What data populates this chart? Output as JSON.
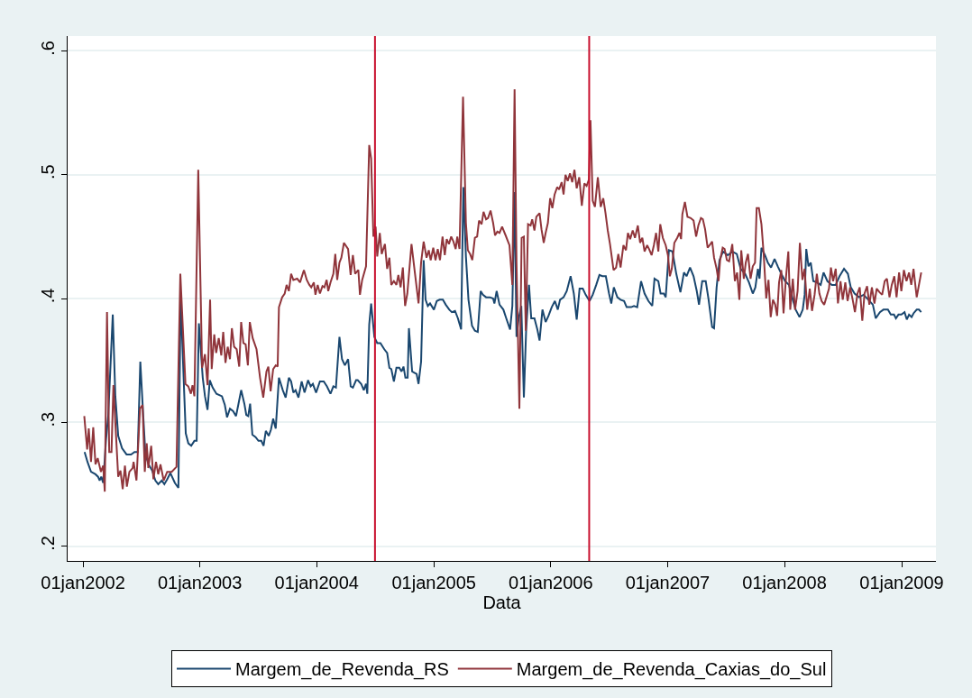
{
  "chart_data": {
    "type": "line",
    "xlabel": "Data",
    "xlim": [
      "2001-11-14",
      "2009-04-18"
    ],
    "xticks": [
      {
        "value": "2002-01-01",
        "label": "01jan2002"
      },
      {
        "value": "2003-01-01",
        "label": "01jan2003"
      },
      {
        "value": "2004-01-01",
        "label": "01jan2004"
      },
      {
        "value": "2005-01-01",
        "label": "01jan2005"
      },
      {
        "value": "2006-01-01",
        "label": "01jan2006"
      },
      {
        "value": "2007-01-01",
        "label": "01jan2007"
      },
      {
        "value": "2008-01-01",
        "label": "01jan2008"
      },
      {
        "value": "2009-01-01",
        "label": "01jan2009"
      }
    ],
    "ylim": [
      0.188,
      0.612
    ],
    "yticks": [
      {
        "value": 0.2,
        "label": ".2"
      },
      {
        "value": 0.3,
        "label": ".3"
      },
      {
        "value": 0.4,
        "label": ".4"
      },
      {
        "value": 0.5,
        "label": ".5"
      },
      {
        "value": 0.6,
        "label": ".6"
      }
    ],
    "grid": "y",
    "legend": "bottom",
    "marker": "none",
    "line_style": "solid",
    "ref_lines": [
      {
        "axis": "x",
        "value": "2004-07-01",
        "label": null,
        "color": "#c8102e"
      },
      {
        "axis": "x",
        "value": "2006-05-01",
        "label": null,
        "color": "#c8102e"
      }
    ],
    "series": [
      {
        "name": "Margem_de_Revenda_RS",
        "color": "#1a476f",
        "x": [
          "2002-01-06",
          "2002-01-15",
          "2002-01-26",
          "2002-02-09",
          "2002-02-17",
          "2002-02-22",
          "2002-02-27",
          "2002-03-05",
          "2002-03-14",
          "2002-03-21",
          "2002-04-04",
          "2002-04-12",
          "2002-04-21",
          "2002-05-03",
          "2002-05-17",
          "2002-05-31",
          "2002-06-11",
          "2002-06-21",
          "2002-06-29",
          "2002-07-08",
          "2002-07-15",
          "2002-07-25",
          "2002-08-05",
          "2002-08-15",
          "2002-08-24",
          "2002-09-04",
          "2002-09-12",
          "2002-09-21",
          "2002-10-01",
          "2002-10-15",
          "2002-10-26",
          "2002-11-02",
          "2002-11-12",
          "2002-11-18",
          "2002-11-26",
          "2002-12-05",
          "2002-12-15",
          "2002-12-22",
          "2002-12-29",
          "2003-01-10",
          "2003-01-17",
          "2003-01-25",
          "2003-02-01",
          "2003-02-10",
          "2003-02-22",
          "2003-03-11",
          "2003-03-20",
          "2003-03-27",
          "2003-04-05",
          "2003-04-15",
          "2003-04-24",
          "2003-05-01",
          "2003-05-10",
          "2003-05-20",
          "2003-05-26",
          "2003-06-01",
          "2003-06-07",
          "2003-06-14",
          "2003-06-24",
          "2003-07-03",
          "2003-07-12",
          "2003-07-19",
          "2003-07-26",
          "2003-08-04",
          "2003-08-11",
          "2003-08-18",
          "2003-08-26",
          "2003-09-05",
          "2003-09-17",
          "2003-09-26",
          "2003-10-06",
          "2003-10-13",
          "2003-10-20",
          "2003-10-27",
          "2003-11-05",
          "2003-11-15",
          "2003-11-24",
          "2003-12-05",
          "2003-12-13",
          "2003-12-20",
          "2003-12-30",
          "2004-01-11",
          "2004-01-23",
          "2004-02-02",
          "2004-02-13",
          "2004-02-22",
          "2004-03-01",
          "2004-03-12",
          "2004-03-20",
          "2004-03-29",
          "2004-04-08",
          "2004-04-16",
          "2004-04-23",
          "2004-05-03",
          "2004-05-08",
          "2004-05-19",
          "2004-05-27",
          "2004-06-03",
          "2004-06-07",
          "2004-06-13",
          "2004-06-19",
          "2004-06-29",
          "2004-07-08",
          "2004-07-18",
          "2004-07-30",
          "2004-08-08",
          "2004-08-15",
          "2004-08-21",
          "2004-08-29",
          "2004-09-06",
          "2004-09-15",
          "2004-09-22",
          "2004-09-28",
          "2004-10-04",
          "2004-10-11",
          "2004-10-15",
          "2004-10-25",
          "2004-11-01",
          "2004-11-08",
          "2004-11-14",
          "2004-11-22",
          "2004-11-30",
          "2004-12-06",
          "2004-12-13",
          "2004-12-20",
          "2005-01-01",
          "2005-01-10",
          "2005-01-19",
          "2005-01-29",
          "2005-02-07",
          "2005-02-18",
          "2005-02-26",
          "2005-03-08",
          "2005-03-17",
          "2005-03-27",
          "2005-04-03",
          "2005-04-11",
          "2005-04-19",
          "2005-04-30",
          "2005-05-09",
          "2005-05-18",
          "2005-05-27",
          "2005-06-03",
          "2005-06-13",
          "2005-06-25",
          "2005-07-05",
          "2005-07-09",
          "2005-07-16",
          "2005-07-25",
          "2005-08-06",
          "2005-08-15",
          "2005-08-27",
          "2005-09-03",
          "2005-09-10",
          "2005-09-16",
          "2005-09-23",
          "2005-10-01",
          "2005-10-09",
          "2005-10-16",
          "2005-10-25",
          "2005-11-01",
          "2005-11-11",
          "2005-11-20",
          "2005-11-27",
          "2005-12-06",
          "2005-12-16",
          "2005-12-25",
          "2006-01-04",
          "2006-01-14",
          "2006-01-23",
          "2006-01-30",
          "2006-02-10",
          "2006-02-20",
          "2006-03-04",
          "2006-03-14",
          "2006-03-23",
          "2006-04-01",
          "2006-04-11",
          "2006-04-20",
          "2006-05-02",
          "2006-05-12",
          "2006-05-23",
          "2006-06-02",
          "2006-06-11",
          "2006-06-22",
          "2006-07-02",
          "2006-07-09",
          "2006-07-17",
          "2006-07-28",
          "2006-08-07",
          "2006-08-18",
          "2006-08-26",
          "2006-09-09",
          "2006-09-18",
          "2006-09-28",
          "2006-10-10",
          "2006-10-21",
          "2006-11-02",
          "2006-11-14",
          "2006-11-21",
          "2006-12-03",
          "2006-12-10",
          "2006-12-20",
          "2006-12-26",
          "2007-01-05",
          "2007-01-16",
          "2007-01-28",
          "2007-02-10",
          "2007-02-21",
          "2007-03-01",
          "2007-03-12",
          "2007-03-23",
          "2007-04-02",
          "2007-04-09",
          "2007-04-19",
          "2007-04-30",
          "2007-05-09",
          "2007-05-20",
          "2007-05-26",
          "2007-06-03",
          "2007-06-12",
          "2007-06-23",
          "2007-07-08",
          "2007-07-22",
          "2007-08-05",
          "2007-08-17",
          "2007-08-31",
          "2007-09-12",
          "2007-09-24",
          "2007-10-02",
          "2007-10-10",
          "2007-10-15",
          "2007-10-21",
          "2007-11-01",
          "2007-11-10",
          "2007-11-20",
          "2007-12-01",
          "2007-12-11",
          "2007-12-20",
          "2008-01-03",
          "2008-01-15",
          "2008-01-27",
          "2008-02-05",
          "2008-02-17",
          "2008-02-27",
          "2008-03-04",
          "2008-03-09",
          "2008-03-16",
          "2008-03-23",
          "2008-03-31",
          "2008-04-11",
          "2008-04-23",
          "2008-05-02",
          "2008-05-14",
          "2008-05-28",
          "2008-06-09",
          "2008-06-21",
          "2008-07-05",
          "2008-07-17",
          "2008-07-26",
          "2008-08-07",
          "2008-08-21",
          "2008-09-04",
          "2008-09-19",
          "2008-10-03",
          "2008-10-12",
          "2008-10-25",
          "2008-11-05",
          "2008-11-19",
          "2008-11-28",
          "2008-12-08",
          "2008-12-14",
          "2008-12-22",
          "2008-12-31",
          "2009-01-10",
          "2009-01-17",
          "2009-01-24",
          "2009-02-01",
          "2009-02-07",
          "2009-02-17",
          "2009-02-24",
          "2009-03-03"
        ],
        "values": [
          0.276,
          0.268,
          0.26,
          0.258,
          0.256,
          0.253,
          0.256,
          0.251,
          0.286,
          0.306,
          0.387,
          0.321,
          0.289,
          0.279,
          0.274,
          0.274,
          0.276,
          0.276,
          0.349,
          0.306,
          0.274,
          0.266,
          0.261,
          0.253,
          0.25,
          0.253,
          0.25,
          0.254,
          0.259,
          0.251,
          0.247,
          0.401,
          0.331,
          0.291,
          0.283,
          0.281,
          0.285,
          0.285,
          0.38,
          0.336,
          0.321,
          0.31,
          0.334,
          0.328,
          0.323,
          0.321,
          0.314,
          0.304,
          0.311,
          0.309,
          0.305,
          0.314,
          0.326,
          0.315,
          0.306,
          0.305,
          0.315,
          0.29,
          0.288,
          0.285,
          0.285,
          0.281,
          0.293,
          0.289,
          0.294,
          0.303,
          0.295,
          0.336,
          0.326,
          0.32,
          0.336,
          0.333,
          0.324,
          0.326,
          0.32,
          0.333,
          0.324,
          0.334,
          0.329,
          0.331,
          0.324,
          0.333,
          0.333,
          0.329,
          0.323,
          0.329,
          0.328,
          0.369,
          0.351,
          0.346,
          0.351,
          0.329,
          0.328,
          0.334,
          0.334,
          0.331,
          0.326,
          0.331,
          0.323,
          0.379,
          0.396,
          0.369,
          0.364,
          0.364,
          0.359,
          0.356,
          0.344,
          0.343,
          0.333,
          0.344,
          0.344,
          0.341,
          0.345,
          0.336,
          0.336,
          0.376,
          0.341,
          0.34,
          0.339,
          0.331,
          0.349,
          0.431,
          0.399,
          0.394,
          0.396,
          0.391,
          0.398,
          0.399,
          0.399,
          0.395,
          0.391,
          0.389,
          0.39,
          0.384,
          0.375,
          0.49,
          0.434,
          0.399,
          0.378,
          0.374,
          0.373,
          0.406,
          0.403,
          0.401,
          0.401,
          0.4,
          0.396,
          0.406,
          0.395,
          0.391,
          0.384,
          0.375,
          0.394,
          0.486,
          0.369,
          0.384,
          0.394,
          0.32,
          0.374,
          0.411,
          0.384,
          0.384,
          0.375,
          0.366,
          0.391,
          0.381,
          0.386,
          0.393,
          0.398,
          0.391,
          0.399,
          0.401,
          0.406,
          0.418,
          0.404,
          0.383,
          0.408,
          0.408,
          0.403,
          0.398,
          0.403,
          0.411,
          0.419,
          0.418,
          0.418,
          0.404,
          0.396,
          0.409,
          0.401,
          0.399,
          0.398,
          0.393,
          0.393,
          0.394,
          0.393,
          0.414,
          0.404,
          0.398,
          0.394,
          0.416,
          0.414,
          0.404,
          0.404,
          0.401,
          0.439,
          0.438,
          0.42,
          0.405,
          0.421,
          0.418,
          0.425,
          0.418,
          0.406,
          0.395,
          0.414,
          0.414,
          0.399,
          0.377,
          0.376,
          0.409,
          0.431,
          0.438,
          0.435,
          0.438,
          0.436,
          0.424,
          0.42,
          0.413,
          0.404,
          0.409,
          0.424,
          0.416,
          0.441,
          0.435,
          0.429,
          0.425,
          0.432,
          0.426,
          0.421,
          0.414,
          0.411,
          0.399,
          0.391,
          0.385,
          0.391,
          0.403,
          0.44,
          0.426,
          0.429,
          0.414,
          0.413,
          0.411,
          0.421,
          0.414,
          0.411,
          0.411,
          0.418,
          0.424,
          0.42,
          0.409,
          0.404,
          0.401,
          0.403,
          0.399,
          0.395,
          0.384,
          0.389,
          0.391,
          0.391,
          0.387,
          0.387,
          0.384,
          0.387,
          0.387,
          0.389,
          0.383,
          0.387,
          0.385,
          0.388,
          0.391,
          0.391,
          0.389
        ]
      },
      {
        "name": "Margem_de_Revenda_Caxias_do_Sul",
        "color": "#90353b",
        "x": [
          "2002-01-05",
          "2002-01-14",
          "2002-01-19",
          "2002-01-26",
          "2002-02-02",
          "2002-02-09",
          "2002-02-16",
          "2002-02-26",
          "2002-03-05",
          "2002-03-10",
          "2002-03-17",
          "2002-03-24",
          "2002-03-31",
          "2002-04-06",
          "2002-04-14",
          "2002-04-21",
          "2002-04-28",
          "2002-05-05",
          "2002-05-12",
          "2002-05-18",
          "2002-05-26",
          "2002-06-05",
          "2002-06-08",
          "2002-06-17",
          "2002-06-28",
          "2002-07-06",
          "2002-07-13",
          "2002-07-19",
          "2002-07-24",
          "2002-08-02",
          "2002-08-09",
          "2002-08-17",
          "2002-08-24",
          "2002-08-31",
          "2002-09-10",
          "2002-09-21",
          "2002-10-05",
          "2002-10-20",
          "2002-11-01",
          "2002-11-17",
          "2002-11-26",
          "2002-12-04",
          "2002-12-09",
          "2002-12-15",
          "2002-12-27",
          "2003-01-08",
          "2003-01-17",
          "2003-01-25",
          "2003-02-02",
          "2003-02-07",
          "2003-02-15",
          "2003-02-21",
          "2003-03-01",
          "2003-03-09",
          "2003-03-15",
          "2003-03-22",
          "2003-03-29",
          "2003-04-05",
          "2003-04-11",
          "2003-04-18",
          "2003-04-26",
          "2003-05-04",
          "2003-05-10",
          "2003-05-17",
          "2003-05-24",
          "2003-05-31",
          "2003-06-06",
          "2003-06-15",
          "2003-06-27",
          "2003-07-08",
          "2003-07-18",
          "2003-07-28",
          "2003-08-03",
          "2003-08-10",
          "2003-08-18",
          "2003-08-26",
          "2003-09-01",
          "2003-09-05",
          "2003-09-15",
          "2003-09-23",
          "2003-09-29",
          "2003-10-06",
          "2003-10-13",
          "2003-10-20",
          "2003-11-01",
          "2003-11-10",
          "2003-11-22",
          "2003-12-01",
          "2003-12-09",
          "2003-12-15",
          "2003-12-23",
          "2003-12-28",
          "2004-01-04",
          "2004-01-11",
          "2004-01-19",
          "2004-01-25",
          "2004-02-01",
          "2004-02-06",
          "2004-02-13",
          "2004-02-22",
          "2004-02-28",
          "2004-03-05",
          "2004-03-12",
          "2004-03-18",
          "2004-03-26",
          "2004-04-08",
          "2004-04-16",
          "2004-04-23",
          "2004-04-30",
          "2004-05-10",
          "2004-05-15",
          "2004-05-22",
          "2004-06-03",
          "2004-06-13",
          "2004-06-19",
          "2004-06-26",
          "2004-07-03",
          "2004-07-08",
          "2004-07-16",
          "2004-07-22",
          "2004-08-01",
          "2004-08-08",
          "2004-08-15",
          "2004-08-21",
          "2004-08-29",
          "2004-09-06",
          "2004-09-12",
          "2004-09-19",
          "2004-09-26",
          "2004-10-03",
          "2004-10-10",
          "2004-10-23",
          "2004-11-03",
          "2004-11-14",
          "2004-11-22",
          "2004-11-30",
          "2004-12-09",
          "2004-12-16",
          "2004-12-22",
          "2004-12-30",
          "2005-01-06",
          "2005-01-13",
          "2005-01-20",
          "2005-01-28",
          "2005-02-04",
          "2005-02-10",
          "2005-02-17",
          "2005-02-24",
          "2005-03-03",
          "2005-03-10",
          "2005-03-15",
          "2005-03-22",
          "2005-04-02",
          "2005-04-11",
          "2005-04-17",
          "2005-04-24",
          "2005-05-01",
          "2005-05-09",
          "2005-05-16",
          "2005-05-22",
          "2005-05-30",
          "2005-06-05",
          "2005-06-13",
          "2005-06-19",
          "2005-06-27",
          "2005-07-05",
          "2005-07-11",
          "2005-07-18",
          "2005-07-25",
          "2005-08-02",
          "2005-08-13",
          "2005-08-25",
          "2005-09-03",
          "2005-09-10",
          "2005-09-16",
          "2005-09-25",
          "2005-10-02",
          "2005-10-09",
          "2005-10-15",
          "2005-10-22",
          "2005-10-30",
          "2005-11-04",
          "2005-11-11",
          "2005-11-17",
          "2005-11-27",
          "2005-12-03",
          "2005-12-10",
          "2005-12-16",
          "2005-12-23",
          "2005-12-30",
          "2006-01-06",
          "2006-01-13",
          "2006-01-21",
          "2006-01-27",
          "2006-02-04",
          "2006-02-10",
          "2006-02-16",
          "2006-02-23",
          "2006-03-02",
          "2006-03-09",
          "2006-03-16",
          "2006-03-23",
          "2006-03-31",
          "2006-04-08",
          "2006-04-16",
          "2006-04-23",
          "2006-04-30",
          "2006-05-05",
          "2006-05-12",
          "2006-05-19",
          "2006-05-28",
          "2006-06-06",
          "2006-06-14",
          "2006-06-21",
          "2006-06-28",
          "2006-07-05",
          "2006-07-16",
          "2006-07-24",
          "2006-07-31",
          "2006-08-07",
          "2006-08-16",
          "2006-08-24",
          "2006-08-30",
          "2006-09-06",
          "2006-09-14",
          "2006-09-21",
          "2006-09-30",
          "2006-10-07",
          "2006-10-14",
          "2006-10-21",
          "2006-10-29",
          "2006-11-04",
          "2006-11-12",
          "2006-11-19",
          "2006-11-26",
          "2006-12-03",
          "2006-12-09",
          "2006-12-17",
          "2006-12-26",
          "2007-01-02",
          "2007-01-08",
          "2007-01-14",
          "2007-01-22",
          "2007-01-31",
          "2007-02-07",
          "2007-02-12",
          "2007-02-16",
          "2007-02-24",
          "2007-03-04",
          "2007-03-14",
          "2007-03-23",
          "2007-03-31",
          "2007-04-07",
          "2007-04-15",
          "2007-04-21",
          "2007-04-28",
          "2007-05-06",
          "2007-05-12",
          "2007-05-20",
          "2007-05-26",
          "2007-06-03",
          "2007-06-09",
          "2007-06-14",
          "2007-06-22",
          "2007-06-28",
          "2007-07-05",
          "2007-07-12",
          "2007-07-22",
          "2007-07-30",
          "2007-08-06",
          "2007-08-13",
          "2007-08-19",
          "2007-08-27",
          "2007-09-02",
          "2007-09-09",
          "2007-09-17",
          "2007-09-24",
          "2007-10-01",
          "2007-10-06",
          "2007-10-13",
          "2007-10-21",
          "2007-10-28",
          "2007-11-05",
          "2007-11-12",
          "2007-11-19",
          "2007-11-26",
          "2007-12-03",
          "2007-12-09",
          "2007-12-15",
          "2007-12-22",
          "2007-12-29",
          "2008-01-06",
          "2008-01-13",
          "2008-01-19",
          "2008-01-27",
          "2008-02-03",
          "2008-02-11",
          "2008-02-18",
          "2008-02-26",
          "2008-03-04",
          "2008-03-12",
          "2008-03-20",
          "2008-03-27",
          "2008-04-04",
          "2008-04-11",
          "2008-04-19",
          "2008-04-26",
          "2008-05-04",
          "2008-05-11",
          "2008-05-19",
          "2008-05-25",
          "2008-06-01",
          "2008-06-09",
          "2008-06-16",
          "2008-06-24",
          "2008-07-01",
          "2008-07-09",
          "2008-07-16",
          "2008-07-24",
          "2008-08-01",
          "2008-08-08",
          "2008-08-16",
          "2008-08-23",
          "2008-08-31",
          "2008-09-07",
          "2008-09-15",
          "2008-09-22",
          "2008-09-30",
          "2008-10-08",
          "2008-10-15",
          "2008-10-24",
          "2008-11-01",
          "2008-11-09",
          "2008-11-16",
          "2008-11-24",
          "2008-12-01",
          "2008-12-09",
          "2008-12-16",
          "2008-12-24",
          "2008-12-31",
          "2009-01-08",
          "2009-01-16",
          "2009-01-24",
          "2009-01-31",
          "2009-02-07",
          "2009-02-17",
          "2009-03-03"
        ],
        "values": [
          0.305,
          0.278,
          0.295,
          0.268,
          0.296,
          0.266,
          0.271,
          0.26,
          0.265,
          0.244,
          0.389,
          0.276,
          0.276,
          0.33,
          0.29,
          0.256,
          0.261,
          0.246,
          0.265,
          0.248,
          0.26,
          0.263,
          0.268,
          0.253,
          0.311,
          0.314,
          0.26,
          0.283,
          0.263,
          0.281,
          0.254,
          0.268,
          0.258,
          0.266,
          0.253,
          0.26,
          0.26,
          0.264,
          0.42,
          0.331,
          0.329,
          0.323,
          0.33,
          0.321,
          0.504,
          0.344,
          0.355,
          0.33,
          0.399,
          0.343,
          0.371,
          0.356,
          0.368,
          0.354,
          0.373,
          0.348,
          0.361,
          0.351,
          0.376,
          0.361,
          0.359,
          0.345,
          0.381,
          0.364,
          0.363,
          0.346,
          0.381,
          0.368,
          0.359,
          0.336,
          0.32,
          0.341,
          0.345,
          0.325,
          0.343,
          0.346,
          0.345,
          0.393,
          0.401,
          0.404,
          0.411,
          0.406,
          0.42,
          0.415,
          0.416,
          0.413,
          0.423,
          0.415,
          0.411,
          0.409,
          0.413,
          0.403,
          0.411,
          0.404,
          0.41,
          0.409,
          0.415,
          0.406,
          0.413,
          0.42,
          0.436,
          0.415,
          0.429,
          0.433,
          0.445,
          0.44,
          0.419,
          0.435,
          0.42,
          0.423,
          0.403,
          0.415,
          0.426,
          0.524,
          0.513,
          0.45,
          0.458,
          0.434,
          0.453,
          0.436,
          0.444,
          0.424,
          0.433,
          0.411,
          0.414,
          0.411,
          0.419,
          0.409,
          0.425,
          0.394,
          0.404,
          0.444,
          0.42,
          0.396,
          0.429,
          0.446,
          0.433,
          0.439,
          0.431,
          0.441,
          0.431,
          0.44,
          0.431,
          0.45,
          0.435,
          0.448,
          0.444,
          0.45,
          0.446,
          0.44,
          0.45,
          0.44,
          0.563,
          0.461,
          0.439,
          0.436,
          0.431,
          0.449,
          0.45,
          0.463,
          0.46,
          0.47,
          0.464,
          0.465,
          0.471,
          0.461,
          0.451,
          0.454,
          0.453,
          0.458,
          0.451,
          0.443,
          0.411,
          0.569,
          0.429,
          0.311,
          0.449,
          0.45,
          0.374,
          0.46,
          0.459,
          0.464,
          0.455,
          0.466,
          0.469,
          0.456,
          0.445,
          0.453,
          0.461,
          0.481,
          0.473,
          0.484,
          0.49,
          0.488,
          0.494,
          0.484,
          0.5,
          0.495,
          0.501,
          0.494,
          0.504,
          0.489,
          0.498,
          0.475,
          0.493,
          0.491,
          0.496,
          0.544,
          0.479,
          0.474,
          0.498,
          0.474,
          0.481,
          0.469,
          0.455,
          0.444,
          0.423,
          0.425,
          0.436,
          0.425,
          0.443,
          0.439,
          0.453,
          0.448,
          0.455,
          0.449,
          0.459,
          0.445,
          0.449,
          0.438,
          0.443,
          0.44,
          0.435,
          0.443,
          0.453,
          0.438,
          0.46,
          0.449,
          0.443,
          0.435,
          0.418,
          0.424,
          0.445,
          0.449,
          0.453,
          0.448,
          0.468,
          0.478,
          0.466,
          0.465,
          0.463,
          0.45,
          0.459,
          0.465,
          0.464,
          0.456,
          0.441,
          0.443,
          0.446,
          0.433,
          0.424,
          0.414,
          0.431,
          0.441,
          0.44,
          0.431,
          0.43,
          0.444,
          0.414,
          0.421,
          0.399,
          0.439,
          0.416,
          0.429,
          0.436,
          0.416,
          0.426,
          0.429,
          0.473,
          0.473,
          0.46,
          0.436,
          0.4,
          0.415,
          0.385,
          0.399,
          0.395,
          0.386,
          0.413,
          0.423,
          0.388,
          0.418,
          0.438,
          0.391,
          0.416,
          0.391,
          0.406,
          0.445,
          0.415,
          0.424,
          0.391,
          0.408,
          0.39,
          0.403,
          0.42,
          0.404,
          0.398,
          0.395,
          0.401,
          0.408,
          0.425,
          0.414,
          0.424,
          0.396,
          0.414,
          0.399,
          0.413,
          0.398,
          0.409,
          0.399,
          0.389,
          0.404,
          0.409,
          0.382,
          0.404,
          0.41,
          0.395,
          0.409,
          0.396,
          0.408,
          0.405,
          0.403,
          0.414,
          0.416,
          0.401,
          0.411,
          0.418,
          0.401,
          0.421,
          0.406,
          0.423,
          0.414,
          0.421,
          0.411,
          0.424,
          0.401,
          0.421
        ]
      }
    ]
  }
}
